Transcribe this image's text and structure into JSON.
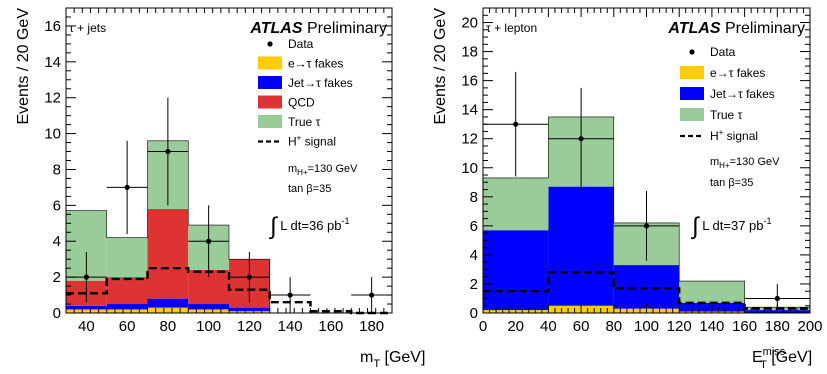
{
  "chart_data": [
    {
      "type": "bar",
      "stacked": true,
      "channel": "τ + jets",
      "brand": "ATLAS",
      "status": "Preliminary",
      "ylabel": "Events / 20 GeV",
      "xlabel_main": "m",
      "xlabel_sub": "T",
      "xlabel_unit": " [GeV]",
      "xlim": [
        30,
        190
      ],
      "ylim": [
        0,
        17
      ],
      "xticks": [
        40,
        60,
        80,
        100,
        120,
        140,
        160,
        180
      ],
      "yticks": [
        0,
        2,
        4,
        6,
        8,
        10,
        12,
        14,
        16
      ],
      "bin_edges": [
        30,
        50,
        70,
        90,
        110,
        130,
        150,
        170,
        190
      ],
      "series": [
        {
          "name": "e→τ fakes",
          "color": "#ffcc00",
          "values": [
            0.2,
            0.2,
            0.3,
            0.2,
            0.1,
            0.0,
            0.0,
            0.0
          ]
        },
        {
          "name": "Jet→τ fakes",
          "color": "#0000ff",
          "values": [
            0.2,
            0.3,
            0.5,
            0.3,
            0.2,
            0.0,
            0.0,
            0.0
          ]
        },
        {
          "name": "QCD",
          "color": "#dd3333",
          "values": [
            1.4,
            1.5,
            5.0,
            1.9,
            2.7,
            0.0,
            0.0,
            0.0
          ]
        },
        {
          "name": "True τ",
          "color": "#99cc99",
          "values": [
            3.9,
            2.2,
            3.8,
            2.5,
            0.0,
            0.0,
            0.0,
            0.0
          ]
        }
      ],
      "signal": {
        "name": "H",
        "name_sup": "+",
        "name_rest": " signal",
        "values": [
          1.1,
          1.9,
          2.5,
          2.3,
          1.3,
          0.6,
          0.1,
          0.0
        ]
      },
      "data": {
        "name": "Data",
        "x": [
          40,
          60,
          80,
          100,
          120,
          140,
          180
        ],
        "y": [
          2,
          7,
          9,
          4,
          2,
          1,
          1
        ],
        "err": [
          1.4,
          2.6,
          3.0,
          2.0,
          1.4,
          1.0,
          1.0
        ],
        "xerr": 10
      },
      "params": [
        "m",
        "H+",
        "=130 GeV",
        "tan β=35"
      ],
      "lumi": {
        "prefix": "L dt=36 pb",
        "sup": "-1"
      }
    },
    {
      "type": "bar",
      "stacked": true,
      "channel": "τ + lepton",
      "brand": "ATLAS",
      "status": "Preliminary",
      "ylabel": "Events / 20 GeV",
      "xlabel_main": "E",
      "xlabel_sup": "miss",
      "xlabel_sub": "T",
      "xlabel_unit": " [GeV]",
      "xlim": [
        0,
        200
      ],
      "ylim": [
        0,
        21
      ],
      "xticks": [
        0,
        20,
        40,
        60,
        80,
        100,
        120,
        140,
        160,
        180,
        200
      ],
      "yticks": [
        0,
        2,
        4,
        6,
        8,
        10,
        12,
        14,
        16,
        18,
        20
      ],
      "bin_edges": [
        0,
        40,
        80,
        120,
        160,
        200
      ],
      "series": [
        {
          "name": "e→τ fakes",
          "color": "#ffcc00",
          "values": [
            0.2,
            0.5,
            0.3,
            0.1,
            0.0
          ]
        },
        {
          "name": "Jet→τ fakes",
          "color": "#0000ff",
          "values": [
            5.5,
            8.2,
            3.0,
            0.6,
            0.2
          ]
        },
        {
          "name": "True τ",
          "color": "#99cc99",
          "values": [
            3.6,
            4.8,
            2.9,
            1.5,
            0.2
          ]
        }
      ],
      "signal": {
        "name": "H",
        "name_sup": "+",
        "name_rest": " signal",
        "values": [
          1.5,
          2.8,
          1.7,
          0.7,
          0.3
        ]
      },
      "data": {
        "name": "Data",
        "x": [
          20,
          60,
          100,
          180
        ],
        "y": [
          13,
          12,
          6,
          1
        ],
        "err": [
          3.6,
          3.5,
          2.4,
          1.0
        ],
        "xerr": 20
      },
      "params": [
        "m",
        "H+",
        "=130 GeV",
        "tan β=35"
      ],
      "lumi": {
        "prefix": "L dt=37 pb",
        "sup": "-1"
      }
    }
  ]
}
